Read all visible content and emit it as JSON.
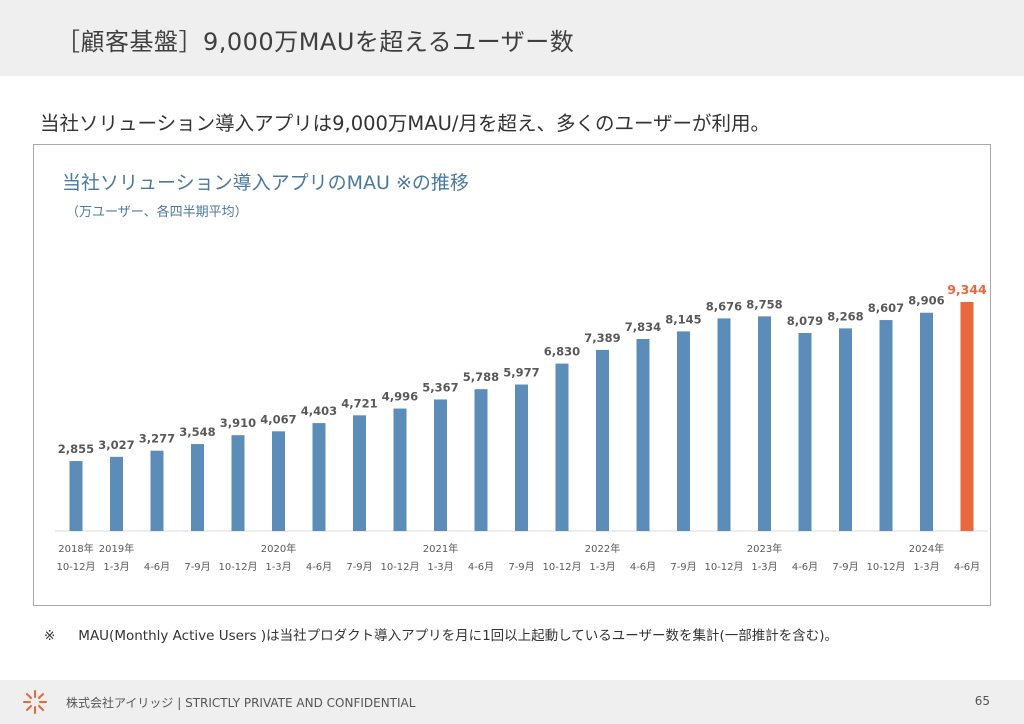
{
  "header": {
    "title": "［顧客基盤］9,000万MAUを超えるユーザー数"
  },
  "lead_text": "当社ソリューション導入アプリは9,000万MAU/月を超え、多くのユーザーが利用。",
  "footnote": {
    "mark": "※",
    "text": "MAU(Monthly Active Users )は当社プロダクト導入アプリを月に1回以上起動しているユーザー数を集計(一部推計を含む)。"
  },
  "footer": {
    "text": "株式会社アイリッジ | STRICTLY PRIVATE AND CONFIDENTIAL",
    "page_number": "65"
  },
  "colors": {
    "bar": "#5b8db8",
    "highlight": "#e8673f",
    "title": "#4a79a0"
  },
  "chart_data": {
    "type": "bar",
    "title": "当社ソリューション導入アプリのMAU ※の推移",
    "subtitle": "（万ユーザー、各四半期平均）",
    "categories": [
      "10-12月",
      "1-3月",
      "4-6月",
      "7-9月",
      "10-12月",
      "1-3月",
      "4-6月",
      "7-9月",
      "10-12月",
      "1-3月",
      "4-6月",
      "7-9月",
      "10-12月",
      "1-3月",
      "4-6月",
      "7-9月",
      "10-12月",
      "1-3月",
      "4-6月",
      "7-9月",
      "10-12月",
      "1-3月",
      "4-6月"
    ],
    "year_labels": [
      "2018年",
      "2019年",
      "",
      "",
      "",
      "2020年",
      "",
      "",
      "",
      "2021年",
      "",
      "",
      "",
      "2022年",
      "",
      "",
      "",
      "2023年",
      "",
      "",
      "",
      "2024年",
      ""
    ],
    "values": [
      2855,
      3027,
      3277,
      3548,
      3910,
      4067,
      4403,
      4721,
      4996,
      5367,
      5788,
      5977,
      6830,
      7389,
      7834,
      8145,
      8676,
      8758,
      8079,
      8268,
      8607,
      8906,
      9344
    ],
    "data_labels": [
      "2,855",
      "3,027",
      "3,277",
      "3,548",
      "3,910",
      "4,067",
      "4,403",
      "4,721",
      "4,996",
      "5,367",
      "5,788",
      "5,977",
      "6,830",
      "7,389",
      "7,834",
      "8,145",
      "8,676",
      "8,758",
      "8,079",
      "8,268",
      "8,607",
      "8,906",
      "9,344"
    ],
    "highlight_index": 22,
    "ylim": [
      0,
      10000
    ],
    "grid": false,
    "legend": "none"
  }
}
